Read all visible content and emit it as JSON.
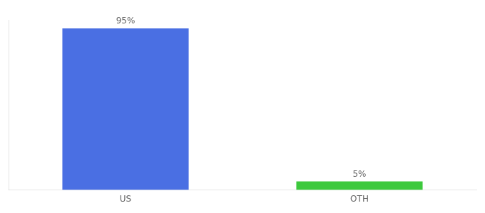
{
  "chart_data": {
    "type": "bar",
    "categories": [
      "US",
      "OTH"
    ],
    "values": [
      95,
      5
    ],
    "value_labels": [
      "95%",
      "5%"
    ],
    "colors": [
      "#4a6fe3",
      "#3dc93d"
    ],
    "ylim": [
      0,
      100
    ],
    "data_labels": true,
    "tick_labels": "x",
    "grid": false
  }
}
